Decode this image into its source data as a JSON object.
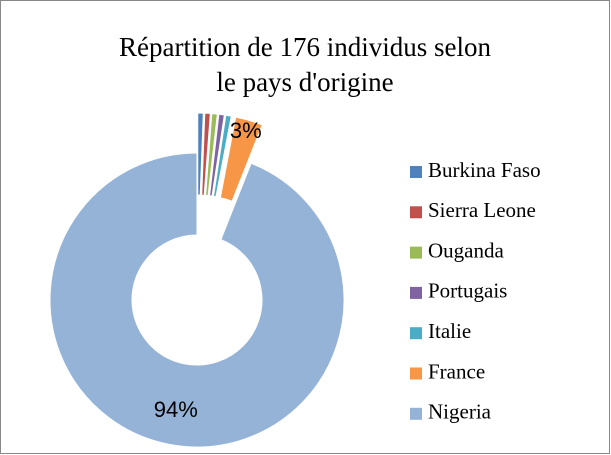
{
  "chart_data": {
    "type": "donut",
    "title": [
      "Répartition de 176 individus selon",
      "le pays d'origine"
    ],
    "categories": [
      "Burkina Faso",
      "Sierra Leone",
      "Ouganda",
      "Portugais",
      "Italie",
      "France",
      "Nigeria"
    ],
    "values": [
      0.6,
      0.6,
      0.6,
      0.6,
      0.6,
      3,
      94
    ],
    "value_labels": [
      null,
      null,
      null,
      null,
      null,
      "3%",
      "94%"
    ],
    "colors": [
      "#4F81BD",
      "#C0504D",
      "#9BBB59",
      "#8064A2",
      "#4BACC6",
      "#F79646",
      "#95B3D7"
    ],
    "legend": "right"
  }
}
